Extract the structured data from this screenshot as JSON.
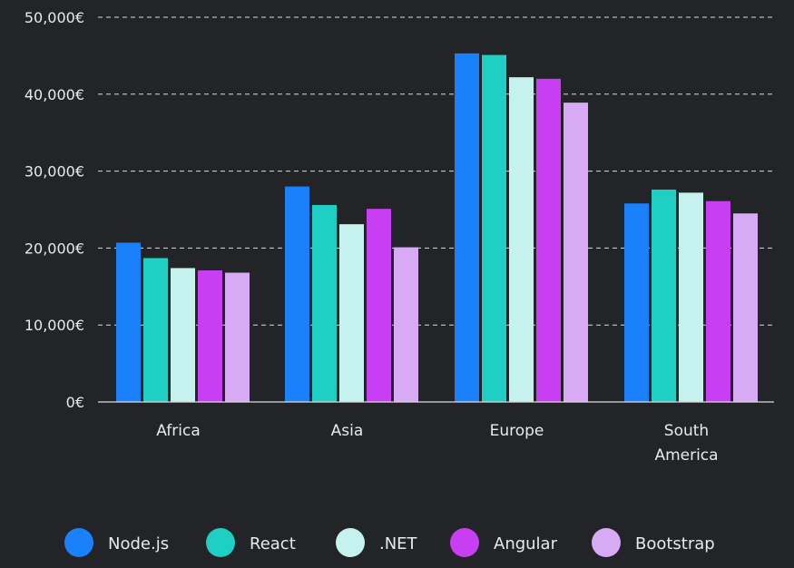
{
  "chart_data": {
    "type": "bar",
    "categories": [
      "Africa",
      "Asia",
      "Europe",
      "South America"
    ],
    "series": [
      {
        "name": "Node.js",
        "color": "#1a81fb",
        "values": [
          20700,
          28000,
          45300,
          25800
        ]
      },
      {
        "name": "React",
        "color": "#1fcfc3",
        "values": [
          18700,
          25600,
          45100,
          27600
        ]
      },
      {
        "name": ".NET",
        "color": "#c5f1ee",
        "values": [
          17400,
          23100,
          42200,
          27200
        ]
      },
      {
        "name": "Angular",
        "color": "#c73ef3",
        "values": [
          17100,
          25100,
          42000,
          26100
        ]
      },
      {
        "name": "Bootstrap",
        "color": "#d8aaf5",
        "values": [
          16800,
          20100,
          38900,
          24500
        ]
      }
    ],
    "y_ticks": [
      "0€",
      "10,000€",
      "20,000€",
      "30,000€",
      "40,000€",
      "50,000€"
    ],
    "ylim": [
      0,
      50000
    ],
    "grid": true,
    "legend_position": "bottom"
  }
}
